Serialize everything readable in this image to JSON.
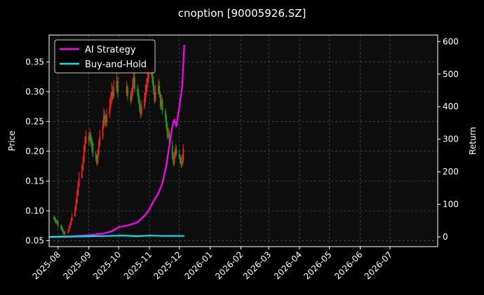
{
  "chart_data": {
    "type": "line",
    "title": "cnoption [90005926.SZ]",
    "xlabel": "",
    "ylabel": "Price",
    "y2label": "Return",
    "ylim": [
      0.04,
      0.395
    ],
    "y2lim": [
      -30,
      620
    ],
    "xlim": [
      "2025-07-23",
      "2026-08-18"
    ],
    "grid": true,
    "legend_position": "top-left",
    "x_ticks": [
      "2025-08",
      "2025-09",
      "2025-10",
      "2025-11",
      "2025-12",
      "2026-01",
      "2026-02",
      "2026-03",
      "2026-04",
      "2026-05",
      "2026-06",
      "2026-07"
    ],
    "y_ticks": [
      "0.05",
      "0.10",
      "0.15",
      "0.20",
      "0.25",
      "0.30",
      "0.35"
    ],
    "y2_ticks": [
      "0",
      "100",
      "200",
      "300",
      "400",
      "500",
      "600"
    ],
    "candles": {
      "dates": [
        "2025-07-28",
        "2025-07-29",
        "2025-07-30",
        "2025-07-31",
        "2025-08-01",
        "2025-08-04",
        "2025-08-05",
        "2025-08-06",
        "2025-08-07",
        "2025-08-08",
        "2025-08-11",
        "2025-08-12",
        "2025-08-13",
        "2025-08-14",
        "2025-08-15",
        "2025-08-18",
        "2025-08-19",
        "2025-08-20",
        "2025-08-21",
        "2025-08-22",
        "2025-08-25",
        "2025-08-26",
        "2025-08-27",
        "2025-08-28",
        "2025-08-29",
        "2025-09-01",
        "2025-09-02",
        "2025-09-03",
        "2025-09-04",
        "2025-09-05",
        "2025-09-08",
        "2025-09-09",
        "2025-09-10",
        "2025-09-11",
        "2025-09-12",
        "2025-09-15",
        "2025-09-16",
        "2025-09-17",
        "2025-09-18",
        "2025-09-19",
        "2025-09-22",
        "2025-09-23",
        "2025-09-24",
        "2025-09-25",
        "2025-09-26",
        "2025-09-29",
        "2025-09-30",
        "2025-10-09",
        "2025-10-10",
        "2025-10-13",
        "2025-10-14",
        "2025-10-15",
        "2025-10-16",
        "2025-10-17",
        "2025-10-20",
        "2025-10-21",
        "2025-10-22",
        "2025-10-23",
        "2025-10-24",
        "2025-10-27",
        "2025-10-28",
        "2025-10-29",
        "2025-10-30",
        "2025-10-31",
        "2025-11-03",
        "2025-11-04",
        "2025-11-05",
        "2025-11-06",
        "2025-11-07",
        "2025-11-10",
        "2025-11-11",
        "2025-11-12",
        "2025-11-13",
        "2025-11-14",
        "2025-11-17",
        "2025-11-18",
        "2025-11-19",
        "2025-11-20",
        "2025-11-21",
        "2025-11-24",
        "2025-11-25",
        "2025-11-26",
        "2025-11-27",
        "2025-11-28",
        "2025-12-01",
        "2025-12-02",
        "2025-12-03",
        "2025-12-04",
        "2025-12-05"
      ],
      "open": [
        0.09,
        0.087,
        0.084,
        0.08,
        0.082,
        0.075,
        0.072,
        0.068,
        0.064,
        0.062,
        0.063,
        0.066,
        0.071,
        0.076,
        0.083,
        0.09,
        0.1,
        0.112,
        0.125,
        0.14,
        0.155,
        0.168,
        0.18,
        0.198,
        0.213,
        0.225,
        0.218,
        0.228,
        0.22,
        0.212,
        0.196,
        0.19,
        0.18,
        0.196,
        0.212,
        0.225,
        0.243,
        0.26,
        0.255,
        0.248,
        0.262,
        0.275,
        0.286,
        0.3,
        0.292,
        0.305,
        0.318,
        0.298,
        0.308,
        0.293,
        0.285,
        0.296,
        0.31,
        0.325,
        0.305,
        0.298,
        0.286,
        0.272,
        0.262,
        0.275,
        0.288,
        0.3,
        0.312,
        0.322,
        0.33,
        0.335,
        0.316,
        0.3,
        0.285,
        0.3,
        0.31,
        0.295,
        0.275,
        0.285,
        0.268,
        0.255,
        0.24,
        0.225,
        0.23,
        0.21,
        0.19,
        0.18,
        0.192,
        0.204,
        0.196,
        0.19,
        0.182,
        0.178,
        0.184
      ],
      "close": [
        0.087,
        0.084,
        0.08,
        0.082,
        0.075,
        0.072,
        0.068,
        0.064,
        0.062,
        0.063,
        0.066,
        0.071,
        0.076,
        0.083,
        0.09,
        0.1,
        0.112,
        0.125,
        0.14,
        0.155,
        0.168,
        0.18,
        0.198,
        0.213,
        0.225,
        0.218,
        0.228,
        0.22,
        0.212,
        0.196,
        0.19,
        0.18,
        0.196,
        0.212,
        0.225,
        0.243,
        0.26,
        0.255,
        0.248,
        0.262,
        0.275,
        0.286,
        0.3,
        0.292,
        0.305,
        0.318,
        0.298,
        0.308,
        0.293,
        0.285,
        0.296,
        0.31,
        0.325,
        0.305,
        0.298,
        0.286,
        0.272,
        0.262,
        0.275,
        0.288,
        0.3,
        0.312,
        0.322,
        0.33,
        0.335,
        0.316,
        0.3,
        0.285,
        0.3,
        0.31,
        0.295,
        0.275,
        0.285,
        0.268,
        0.255,
        0.24,
        0.225,
        0.23,
        0.21,
        0.19,
        0.18,
        0.192,
        0.204,
        0.196,
        0.19,
        0.182,
        0.178,
        0.184,
        0.205
      ],
      "high": [
        0.093,
        0.09,
        0.087,
        0.085,
        0.085,
        0.078,
        0.075,
        0.071,
        0.067,
        0.066,
        0.069,
        0.075,
        0.08,
        0.088,
        0.096,
        0.108,
        0.12,
        0.135,
        0.15,
        0.165,
        0.178,
        0.192,
        0.21,
        0.225,
        0.235,
        0.232,
        0.238,
        0.232,
        0.224,
        0.216,
        0.2,
        0.194,
        0.204,
        0.22,
        0.236,
        0.252,
        0.272,
        0.268,
        0.262,
        0.272,
        0.29,
        0.298,
        0.315,
        0.31,
        0.32,
        0.34,
        0.325,
        0.318,
        0.312,
        0.3,
        0.306,
        0.322,
        0.34,
        0.335,
        0.312,
        0.305,
        0.292,
        0.28,
        0.285,
        0.298,
        0.312,
        0.322,
        0.335,
        0.34,
        0.348,
        0.342,
        0.325,
        0.31,
        0.312,
        0.322,
        0.318,
        0.3,
        0.295,
        0.29,
        0.272,
        0.262,
        0.248,
        0.24,
        0.236,
        0.218,
        0.198,
        0.2,
        0.212,
        0.21,
        0.202,
        0.194,
        0.19,
        0.195,
        0.212
      ],
      "low": [
        0.084,
        0.081,
        0.077,
        0.078,
        0.072,
        0.069,
        0.065,
        0.061,
        0.059,
        0.06,
        0.062,
        0.067,
        0.072,
        0.079,
        0.086,
        0.095,
        0.106,
        0.118,
        0.132,
        0.148,
        0.16,
        0.173,
        0.19,
        0.205,
        0.215,
        0.21,
        0.214,
        0.208,
        0.2,
        0.19,
        0.184,
        0.175,
        0.178,
        0.192,
        0.208,
        0.22,
        0.238,
        0.244,
        0.24,
        0.242,
        0.256,
        0.27,
        0.28,
        0.286,
        0.288,
        0.298,
        0.29,
        0.292,
        0.286,
        0.278,
        0.282,
        0.292,
        0.305,
        0.3,
        0.292,
        0.28,
        0.266,
        0.255,
        0.258,
        0.27,
        0.282,
        0.295,
        0.305,
        0.316,
        0.325,
        0.31,
        0.295,
        0.28,
        0.282,
        0.295,
        0.29,
        0.27,
        0.27,
        0.262,
        0.25,
        0.235,
        0.22,
        0.222,
        0.205,
        0.186,
        0.175,
        0.176,
        0.188,
        0.192,
        0.186,
        0.178,
        0.172,
        0.174,
        0.18
      ]
    },
    "series": [
      {
        "name": "AI Strategy",
        "color": "#ff00ff",
        "axis": "right",
        "x": [
          "2025-07-23",
          "2025-08-15",
          "2025-09-01",
          "2025-09-15",
          "2025-09-25",
          "2025-10-01",
          "2025-10-10",
          "2025-10-20",
          "2025-10-27",
          "2025-11-01",
          "2025-11-05",
          "2025-11-10",
          "2025-11-14",
          "2025-11-18",
          "2025-11-21",
          "2025-11-24",
          "2025-11-26",
          "2025-11-28",
          "2025-12-01",
          "2025-12-02",
          "2025-12-03",
          "2025-12-04",
          "2025-12-05",
          "2025-12-06"
        ],
        "values": [
          0,
          2,
          5,
          10,
          18,
          30,
          35,
          45,
          65,
          85,
          110,
          135,
          165,
          220,
          280,
          340,
          360,
          340,
          400,
          420,
          440,
          470,
          530,
          590
        ]
      },
      {
        "name": "Buy-and-Hold",
        "color": "#00e5ee",
        "axis": "right",
        "x": [
          "2025-07-23",
          "2025-08-15",
          "2025-09-01",
          "2025-09-20",
          "2025-10-05",
          "2025-10-20",
          "2025-11-01",
          "2025-11-15",
          "2025-12-06"
        ],
        "values": [
          0,
          1,
          2,
          3,
          4,
          2,
          4,
          3,
          3
        ]
      }
    ]
  }
}
